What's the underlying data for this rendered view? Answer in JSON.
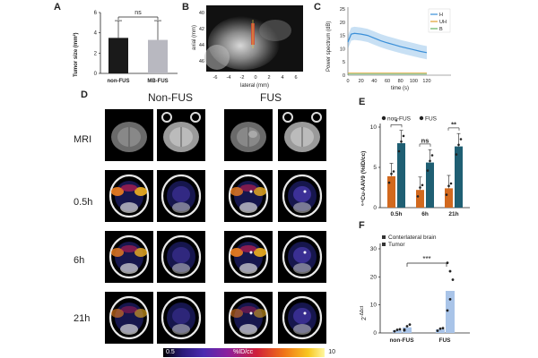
{
  "panels": {
    "A": "A",
    "B": "B",
    "C": "C",
    "D": "D",
    "E": "E",
    "F": "F"
  },
  "panelA": {
    "chart_data": {
      "type": "bar",
      "categories": [
        "non-FUS",
        "MB-FUS"
      ],
      "values": [
        3.5,
        3.3
      ],
      "errors": [
        1.7,
        1.9
      ],
      "ylabel": "Tumor size (mm²)",
      "ylim": [
        0,
        6
      ],
      "yticks": [
        "0",
        "2",
        "4",
        "6"
      ],
      "significance": "ns",
      "colors": [
        "#1a1a1a",
        "#b8b8c0"
      ]
    }
  },
  "panelB": {
    "xlabel": "lateral (mm)",
    "ylabel": "axial (mm)",
    "xticks": [
      "-6",
      "-4",
      "-2",
      "0",
      "2",
      "4",
      "6"
    ],
    "yticks": [
      "40",
      "42",
      "44",
      "46"
    ]
  },
  "panelC": {
    "chart_data": {
      "type": "line",
      "xlabel": "time (s)",
      "ylabel": "Power spectrum (dB)",
      "xlim": [
        0,
        120
      ],
      "ylim": [
        0,
        25
      ],
      "xticks": [
        "0",
        "20",
        "40",
        "60",
        "80",
        "100",
        "120"
      ],
      "yticks": [
        "0",
        "5",
        "10",
        "15",
        "20",
        "25"
      ],
      "legend_position": "top-right",
      "series": [
        {
          "name": "H",
          "color": "#3a8fd8",
          "x": [
            0,
            5,
            10,
            20,
            30,
            40,
            50,
            60,
            70,
            80,
            90,
            100,
            110,
            120
          ],
          "y": [
            12.5,
            15.5,
            15.8,
            15.5,
            15.0,
            14.0,
            13.0,
            12.2,
            11.5,
            10.8,
            10.2,
            9.6,
            9.0,
            8.5
          ]
        },
        {
          "name": "UH",
          "color": "#e0a030",
          "x": [
            0,
            120
          ],
          "y": [
            0.8,
            0.8
          ]
        },
        {
          "name": "B",
          "color": "#60b060",
          "x": [
            0,
            120
          ],
          "y": [
            0.4,
            0.4
          ]
        }
      ]
    }
  },
  "panelD": {
    "col_nonfus": "Non-FUS",
    "col_fus": "FUS",
    "rows": [
      "MRI",
      "0.5h",
      "6h",
      "21h"
    ],
    "colorbar_min": "0.5",
    "colorbar_label": "%ID/cc",
    "colorbar_max": "10"
  },
  "panelE": {
    "chart_data": {
      "type": "bar",
      "categories": [
        "0.5h",
        "6h",
        "21h"
      ],
      "ylabel": "⁶⁴Cu-AAV9 (%ID/cc)",
      "ylim": [
        0,
        10
      ],
      "yticks": [
        "0",
        "5",
        "10"
      ],
      "legend_position": "top",
      "series": [
        {
          "name": "non-FUS",
          "color": "#d2691e",
          "values": [
            3.9,
            2.2,
            2.4
          ]
        },
        {
          "name": "FUS",
          "color": "#1f5f73",
          "values": [
            8.0,
            5.6,
            7.6
          ]
        }
      ],
      "significance": [
        "*",
        "ns",
        "**"
      ]
    }
  },
  "panelF": {
    "chart_data": {
      "type": "bar",
      "categories": [
        "non-FUS",
        "FUS"
      ],
      "ylabel": "2⁻ᐞᐞᶜᵗ",
      "ylim": [
        0,
        30
      ],
      "yticks": [
        "0",
        "10",
        "20",
        "30"
      ],
      "legend_position": "top-left",
      "series": [
        {
          "name": "Conterlateral brain",
          "color": "#a9c4e8",
          "values": [
            1.0,
            1.3
          ]
        },
        {
          "name": "Tumor",
          "color": "#a9c4e8",
          "values": [
            2.0,
            15.0
          ]
        }
      ],
      "significance": "***"
    }
  }
}
